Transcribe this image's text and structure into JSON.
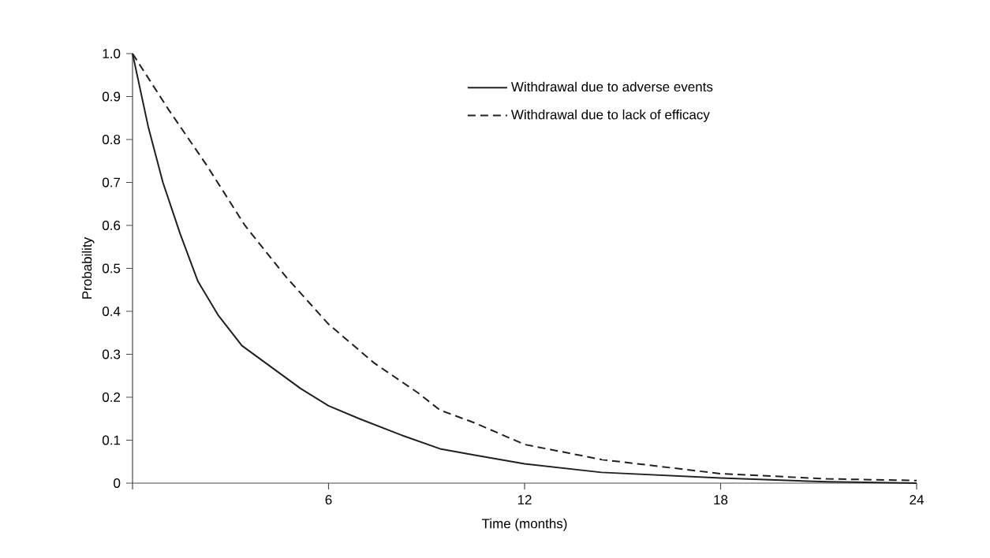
{
  "chart_data": {
    "type": "line",
    "xlabel": "Time (months)",
    "ylabel": "Probability",
    "xlim": [
      0,
      24
    ],
    "ylim": [
      0,
      1
    ],
    "xticks": [
      {
        "value": 0,
        "label": null
      },
      6,
      12,
      18,
      24
    ],
    "yticks": [
      0,
      0.1,
      0.2,
      0.3,
      0.4,
      0.5,
      0.6,
      0.7,
      0.8,
      0.9,
      {
        "value": 1,
        "label": "1.0"
      }
    ],
    "legend": "top right",
    "series": [
      {
        "name": "Withdrawal due to adverse events",
        "color": "#231f20",
        "line_style": "solid",
        "x": [
          0,
          0.48,
          0.93,
          1.46,
          2.0,
          2.63,
          3.35,
          4.25,
          5.15,
          6,
          6.94,
          8.29,
          9.41,
          10.48,
          12,
          14.35,
          18,
          21.26,
          24
        ],
        "values": [
          1.0,
          0.83,
          0.7,
          0.58,
          0.47,
          0.39,
          0.32,
          0.27,
          0.22,
          0.18,
          0.15,
          0.11,
          0.08,
          0.065,
          0.045,
          0.025,
          0.012,
          0.003,
          0
        ]
      },
      {
        "name": "Withdrawal due to lack of efficacy",
        "color": "#231f20",
        "line_style": "dashed",
        "x": [
          0,
          1.1,
          2.27,
          3.44,
          4.7,
          6,
          7.39,
          8.74,
          9.41,
          10.48,
          12,
          14.35,
          18,
          21.26,
          24
        ],
        "values": [
          1.0,
          0.87,
          0.74,
          0.6,
          0.48,
          0.37,
          0.28,
          0.21,
          0.17,
          0.14,
          0.09,
          0.055,
          0.022,
          0.01,
          0.006
        ]
      }
    ]
  }
}
